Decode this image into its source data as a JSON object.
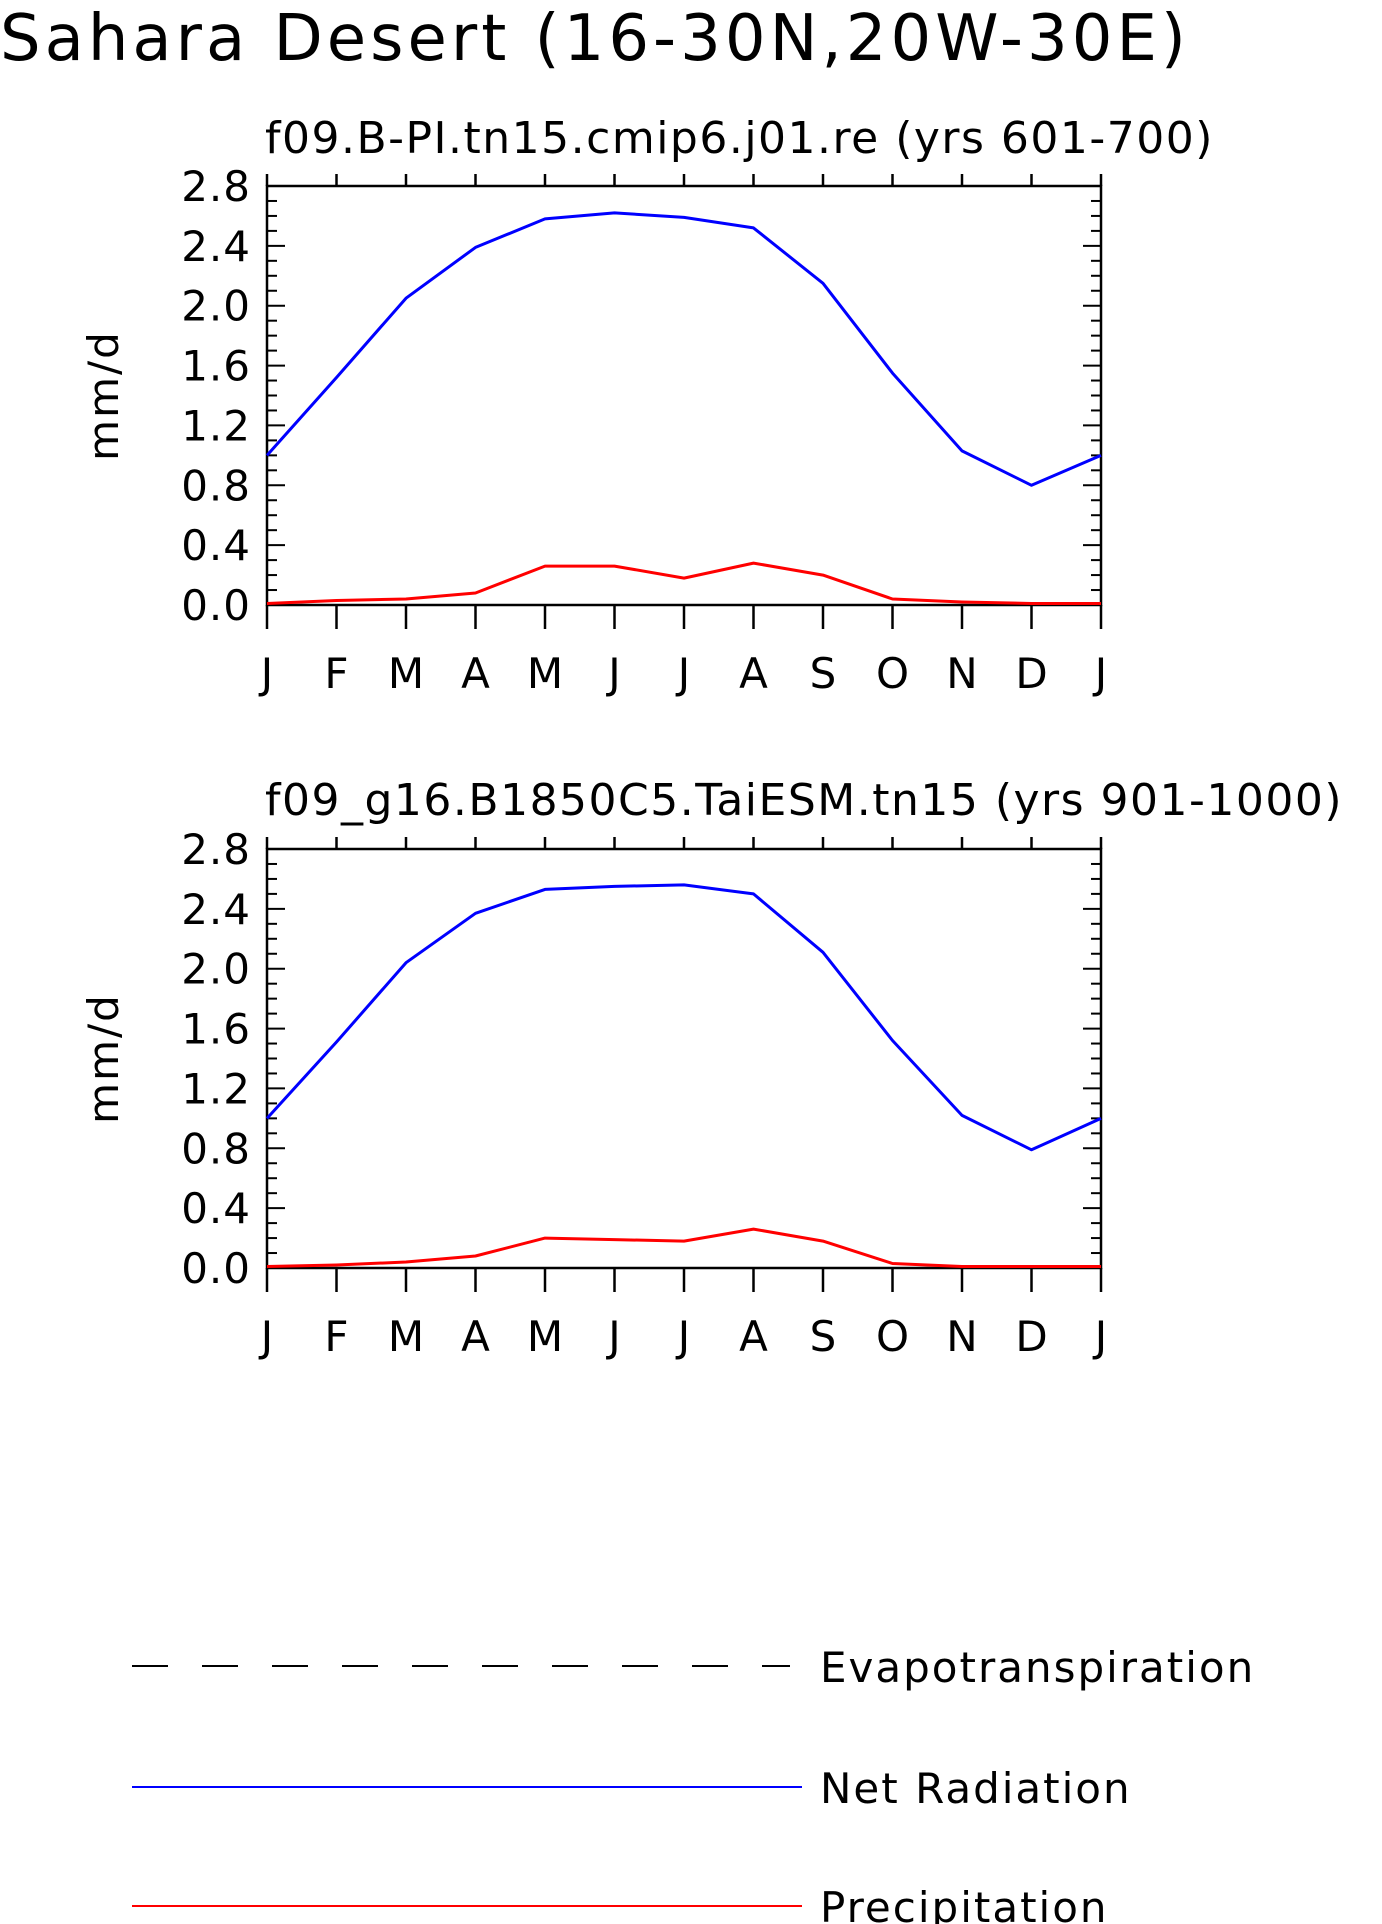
{
  "figure": {
    "title": "Sahara Desert (16-30N,20W-30E)"
  },
  "chart_data": [
    {
      "type": "line",
      "title": "f09.B-PI.tn15.cmip6.j01.re (yrs 601-700)",
      "ylabel": "mm/d",
      "xlabel": "",
      "categories": [
        "J",
        "F",
        "M",
        "A",
        "M",
        "J",
        "J",
        "A",
        "S",
        "O",
        "N",
        "D",
        "J"
      ],
      "yticks": [
        "0.0",
        "0.4",
        "0.8",
        "1.2",
        "1.6",
        "2.0",
        "2.4",
        "2.8"
      ],
      "ylim": [
        0,
        2.8
      ],
      "grid": false,
      "series": [
        {
          "name": "Net Radiation",
          "color": "#0000ff",
          "values": [
            1.0,
            1.52,
            2.05,
            2.39,
            2.58,
            2.62,
            2.59,
            2.52,
            2.15,
            1.55,
            1.03,
            0.8,
            1.0
          ]
        },
        {
          "name": "Precipitation",
          "color": "#ff0000",
          "values": [
            0.01,
            0.03,
            0.04,
            0.08,
            0.26,
            0.26,
            0.18,
            0.28,
            0.2,
            0.04,
            0.02,
            0.01,
            0.01
          ]
        }
      ]
    },
    {
      "type": "line",
      "title": "f09_g16.B1850C5.TaiESM.tn15 (yrs 901-1000)",
      "ylabel": "mm/d",
      "xlabel": "",
      "categories": [
        "J",
        "F",
        "M",
        "A",
        "M",
        "J",
        "J",
        "A",
        "S",
        "O",
        "N",
        "D",
        "J"
      ],
      "yticks": [
        "0.0",
        "0.4",
        "0.8",
        "1.2",
        "1.6",
        "2.0",
        "2.4",
        "2.8"
      ],
      "ylim": [
        0,
        2.8
      ],
      "grid": false,
      "series": [
        {
          "name": "Net Radiation",
          "color": "#0000ff",
          "values": [
            1.0,
            1.51,
            2.04,
            2.37,
            2.53,
            2.55,
            2.56,
            2.5,
            2.11,
            1.52,
            1.02,
            0.79,
            1.0
          ]
        },
        {
          "name": "Precipitation",
          "color": "#ff0000",
          "values": [
            0.01,
            0.02,
            0.04,
            0.08,
            0.2,
            0.19,
            0.18,
            0.26,
            0.18,
            0.03,
            0.01,
            0.01,
            0.01
          ]
        }
      ]
    }
  ],
  "legend": {
    "position": "bottom",
    "entries": [
      {
        "label": "Evapotranspiration",
        "color": "#000000",
        "style": "dashed"
      },
      {
        "label": "Net Radiation",
        "color": "#0000ff",
        "style": "solid"
      },
      {
        "label": "Precipitation",
        "color": "#ff0000",
        "style": "solid"
      }
    ]
  }
}
